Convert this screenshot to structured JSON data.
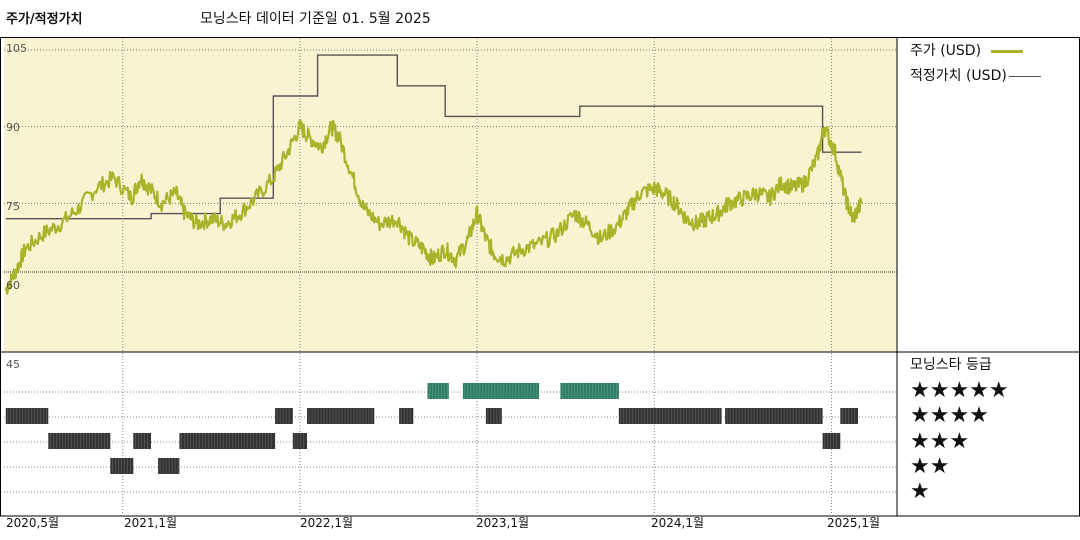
{
  "header": {
    "title": "주가/적정가치",
    "subtitle": "모닝스타 데이터 기준일 01. 5월 2025"
  },
  "legend": {
    "price": "주가 (USD)",
    "fair_value": "적정가치 (USD)",
    "rating_title": "모닝스타 등급"
  },
  "colors": {
    "background": "#f8f3d0",
    "price": "#a8b52a",
    "fair_value": "#555555",
    "five_star": "#2e7d66",
    "bars": "#333333"
  },
  "stars": [
    "★★★★★",
    "★★★★",
    "★★★",
    "★★",
    "★"
  ],
  "chart_data": {
    "type": "line",
    "x_labels": [
      "2020,5월",
      "2021,1월",
      "2022,1월",
      "2023,1월",
      "2024,1월",
      "2025,1월"
    ],
    "y_ticks": [
      105,
      90,
      75,
      60
    ],
    "rating_tick": "45",
    "ylim": [
      45,
      105
    ],
    "xlim": [
      2020.33,
      2025.37
    ],
    "price_series": [
      [
        2020.34,
        58
      ],
      [
        2020.4,
        62
      ],
      [
        2020.45,
        66
      ],
      [
        2020.55,
        69
      ],
      [
        2020.65,
        71
      ],
      [
        2020.75,
        74
      ],
      [
        2020.85,
        78
      ],
      [
        2020.95,
        80
      ],
      [
        2021.05,
        76
      ],
      [
        2021.1,
        80
      ],
      [
        2021.15,
        78
      ],
      [
        2021.22,
        75
      ],
      [
        2021.3,
        77
      ],
      [
        2021.35,
        73
      ],
      [
        2021.42,
        71
      ],
      [
        2021.5,
        72
      ],
      [
        2021.58,
        71
      ],
      [
        2021.66,
        73
      ],
      [
        2021.75,
        76
      ],
      [
        2021.85,
        80
      ],
      [
        2021.93,
        85
      ],
      [
        2022.0,
        90
      ],
      [
        2022.05,
        88
      ],
      [
        2022.12,
        86
      ],
      [
        2022.18,
        90
      ],
      [
        2022.22,
        88
      ],
      [
        2022.3,
        80
      ],
      [
        2022.36,
        74
      ],
      [
        2022.45,
        71
      ],
      [
        2022.55,
        72
      ],
      [
        2022.62,
        68
      ],
      [
        2022.7,
        66
      ],
      [
        2022.75,
        64
      ],
      [
        2022.82,
        66
      ],
      [
        2022.88,
        64
      ],
      [
        2022.95,
        68
      ],
      [
        2023.0,
        73
      ],
      [
        2023.05,
        68
      ],
      [
        2023.1,
        65
      ],
      [
        2023.16,
        64
      ],
      [
        2023.25,
        66
      ],
      [
        2023.35,
        67
      ],
      [
        2023.45,
        69
      ],
      [
        2023.55,
        73
      ],
      [
        2023.62,
        71
      ],
      [
        2023.7,
        68
      ],
      [
        2023.8,
        71
      ],
      [
        2023.86,
        74
      ],
      [
        2023.92,
        77
      ],
      [
        2024.0,
        78
      ],
      [
        2024.05,
        77
      ],
      [
        2024.12,
        75
      ],
      [
        2024.18,
        72
      ],
      [
        2024.24,
        71
      ],
      [
        2024.3,
        72
      ],
      [
        2024.36,
        73
      ],
      [
        2024.42,
        75
      ],
      [
        2024.5,
        76
      ],
      [
        2024.58,
        77
      ],
      [
        2024.65,
        76
      ],
      [
        2024.72,
        79
      ],
      [
        2024.78,
        78
      ],
      [
        2024.85,
        79
      ],
      [
        2024.92,
        84
      ],
      [
        2024.96,
        90
      ],
      [
        2025.02,
        85
      ],
      [
        2025.08,
        76
      ],
      [
        2025.12,
        72
      ],
      [
        2025.17,
        75
      ]
    ],
    "fair_value_series": [
      [
        2020.34,
        72
      ],
      [
        2021.16,
        72
      ],
      [
        2021.16,
        73
      ],
      [
        2021.55,
        73
      ],
      [
        2021.55,
        76
      ],
      [
        2021.85,
        76
      ],
      [
        2021.85,
        96
      ],
      [
        2022.1,
        96
      ],
      [
        2022.1,
        104
      ],
      [
        2022.55,
        104
      ],
      [
        2022.55,
        98
      ],
      [
        2022.82,
        98
      ],
      [
        2022.82,
        92
      ],
      [
        2023.58,
        92
      ],
      [
        2023.58,
        94
      ],
      [
        2024.95,
        94
      ],
      [
        2024.95,
        85
      ],
      [
        2025.17,
        85
      ]
    ],
    "ratings": [
      {
        "stars": 5,
        "ranges": [
          [
            2022.72,
            2022.84
          ],
          [
            2022.92,
            2023.35
          ],
          [
            2023.47,
            2023.8
          ]
        ]
      },
      {
        "stars": 4,
        "ranges": [
          [
            2020.34,
            2020.58
          ],
          [
            2021.86,
            2021.96
          ],
          [
            2022.04,
            2022.42
          ],
          [
            2022.56,
            2022.64
          ],
          [
            2023.05,
            2023.14
          ],
          [
            2023.8,
            2024.38
          ],
          [
            2024.4,
            2024.95
          ],
          [
            2025.05,
            2025.15
          ]
        ]
      },
      {
        "stars": 3,
        "ranges": [
          [
            2020.58,
            2020.93
          ],
          [
            2021.06,
            2021.16
          ],
          [
            2021.32,
            2021.86
          ],
          [
            2021.96,
            2022.04
          ],
          [
            2024.95,
            2025.05
          ]
        ]
      },
      {
        "stars": 2,
        "ranges": [
          [
            2020.93,
            2021.06
          ],
          [
            2021.2,
            2021.32
          ]
        ]
      },
      {
        "stars": 1,
        "ranges": []
      }
    ]
  }
}
